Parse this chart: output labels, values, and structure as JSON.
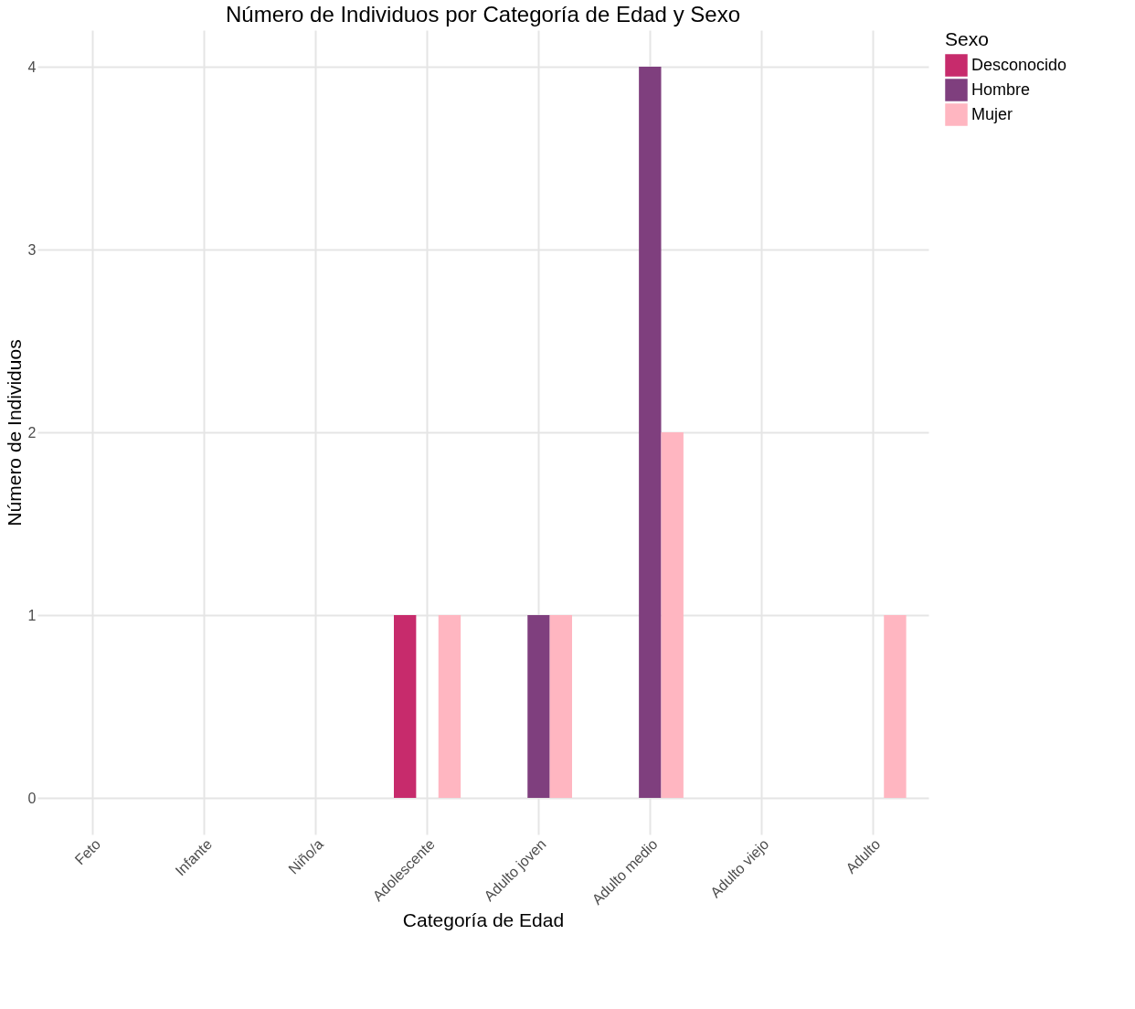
{
  "chart_data": {
    "type": "bar",
    "title": "Número de Individuos por Categoría de Edad y Sexo",
    "xlabel": "Categoría de Edad",
    "ylabel": "Número de Individuos",
    "legend_title": "Sexo",
    "categories": [
      "Feto",
      "Infante",
      "Niño/a",
      "Adolescente",
      "Adulto joven",
      "Adulto medio",
      "Adulto viejo",
      "Adulto"
    ],
    "series": [
      {
        "name": "Desconocido",
        "color": "#c72b6c",
        "values": [
          0,
          0,
          0,
          1,
          0,
          0,
          0,
          0
        ]
      },
      {
        "name": "Hombre",
        "color": "#7f3f7e",
        "values": [
          0,
          0,
          0,
          0,
          1,
          4,
          0,
          0
        ]
      },
      {
        "name": "Mujer",
        "color": "#ffb6c1",
        "values": [
          0,
          0,
          0,
          1,
          1,
          2,
          0,
          1
        ]
      }
    ],
    "ylim": [
      -0.2,
      4.2
    ],
    "yticks": [
      0,
      1,
      2,
      3,
      4
    ],
    "grid": true,
    "legend": "right"
  }
}
